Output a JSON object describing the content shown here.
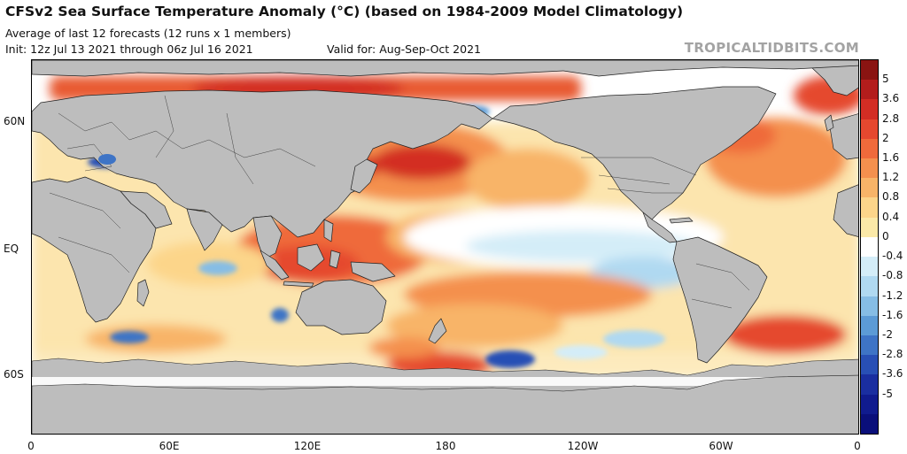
{
  "header": {
    "title": "CFSv2 Sea Surface Temperature Anomaly (°C) (based on 1984-2009 Model Climatology)",
    "subtitle": "Average of last 12 forecasts (12 runs x 1 members)",
    "init": "Init: 12z Jul 13 2021 through 06z Jul 16 2021",
    "valid": "Valid for: Aug-Sep-Oct 2021",
    "brand": "TROPICALTIDBITS.COM"
  },
  "map": {
    "lat_labels": [
      "60N",
      "EQ",
      "60S"
    ],
    "lon_labels": [
      "0",
      "60E",
      "120E",
      "180",
      "120W",
      "60W",
      "0"
    ],
    "colors": {
      "land": "#bdbdbd",
      "ice": "#c4c4c4",
      "ocean_neutral": "#ffffff",
      "border": "#222222"
    }
  },
  "colorbar": {
    "labels": [
      "5",
      "3.6",
      "2.8",
      "2",
      "1.6",
      "1.2",
      "0.8",
      "0.4",
      "0",
      "-0.4",
      "-0.8",
      "-1.2",
      "-1.6",
      "-2",
      "-2.8",
      "-3.6",
      "-5"
    ],
    "colors": [
      "#8a1412",
      "#b31d1c",
      "#d32d24",
      "#e5482f",
      "#ef6a3b",
      "#f4904e",
      "#f8b468",
      "#fcd58a",
      "#fbe9a8",
      "#ffffff",
      "#d4edf8",
      "#b0d9f1",
      "#86bde5",
      "#5c9bd6",
      "#3e74c6",
      "#284fb5",
      "#1a2ea0",
      "#101b8e",
      "#0a0f7a"
    ]
  }
}
